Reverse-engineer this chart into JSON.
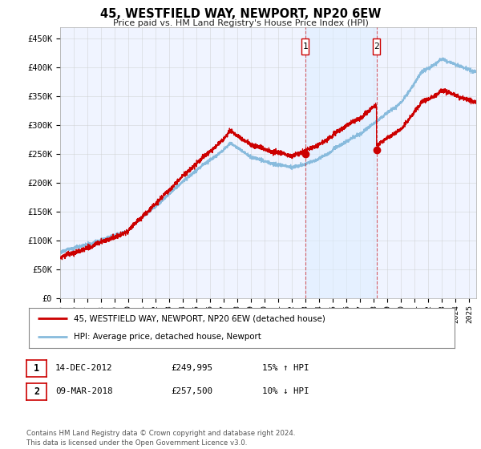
{
  "title": "45, WESTFIELD WAY, NEWPORT, NP20 6EW",
  "subtitle": "Price paid vs. HM Land Registry's House Price Index (HPI)",
  "ylabel_ticks": [
    "£0",
    "£50K",
    "£100K",
    "£150K",
    "£200K",
    "£250K",
    "£300K",
    "£350K",
    "£400K",
    "£450K"
  ],
  "ytick_values": [
    0,
    50000,
    100000,
    150000,
    200000,
    250000,
    300000,
    350000,
    400000,
    450000
  ],
  "ylim": [
    0,
    470000
  ],
  "xlim_start": 1995.0,
  "xlim_end": 2025.5,
  "red_color": "#cc0000",
  "blue_color": "#88bbdd",
  "marker1_x": 2012.96,
  "marker1_y": 249995,
  "marker2_x": 2018.19,
  "marker2_y": 257500,
  "legend_label1": "45, WESTFIELD WAY, NEWPORT, NP20 6EW (detached house)",
  "legend_label2": "HPI: Average price, detached house, Newport",
  "table_row1": [
    "1",
    "14-DEC-2012",
    "£249,995",
    "15% ↑ HPI"
  ],
  "table_row2": [
    "2",
    "09-MAR-2018",
    "£257,500",
    "10% ↓ HPI"
  ],
  "footer": "Contains HM Land Registry data © Crown copyright and database right 2024.\nThis data is licensed under the Open Government Licence v3.0.",
  "bg_color": "#ffffff",
  "plot_bg_color": "#f0f4ff"
}
